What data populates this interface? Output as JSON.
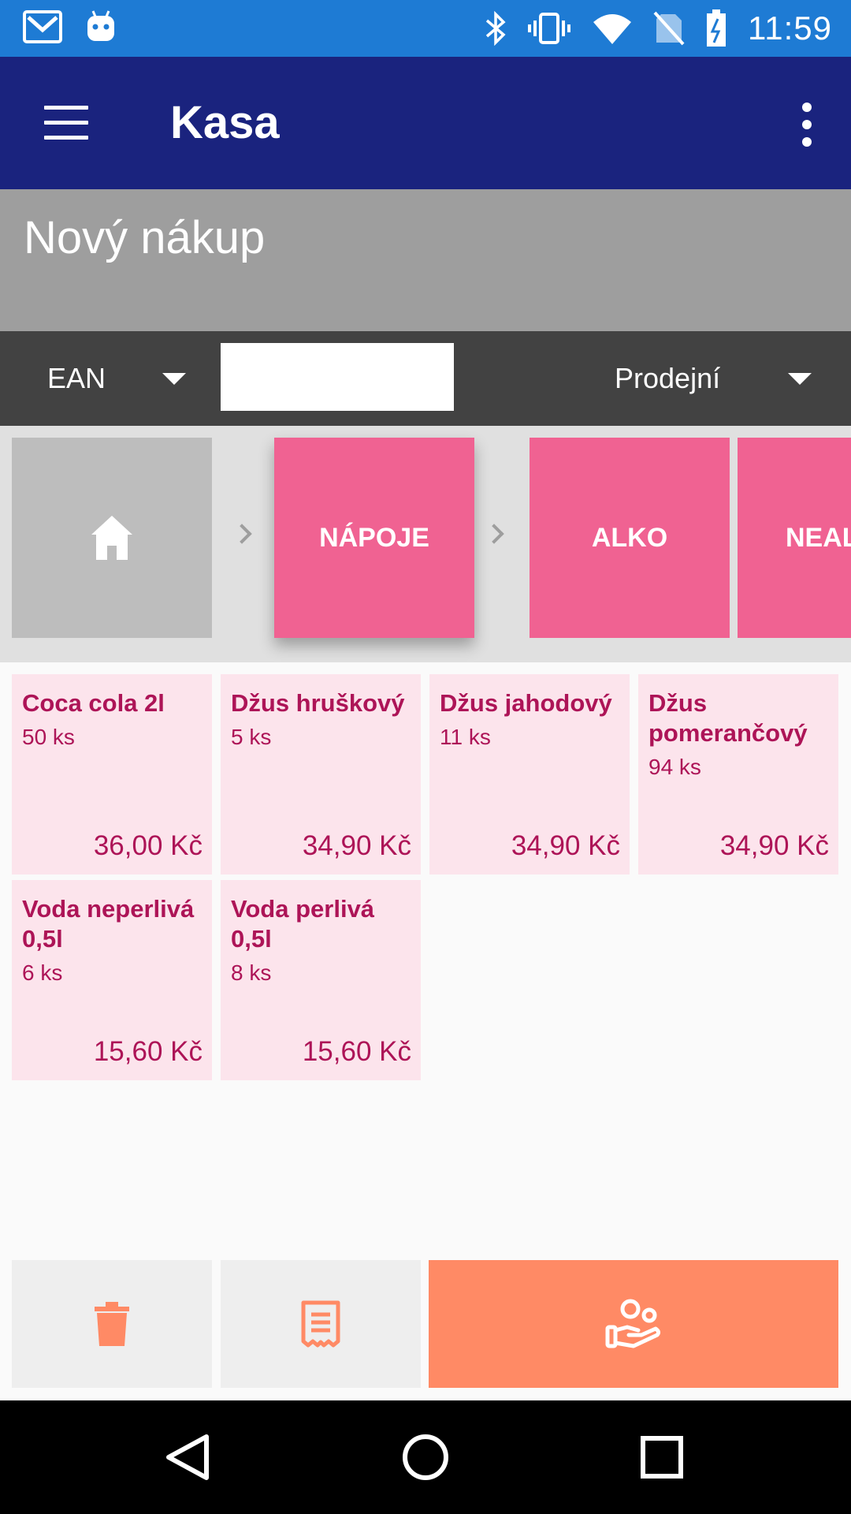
{
  "status_bar": {
    "time": "11:59",
    "icons": [
      "gmail-icon",
      "android-icon",
      "bluetooth-icon",
      "vibrate-icon",
      "wifi-icon",
      "no-sim-icon",
      "battery-charging-icon"
    ]
  },
  "app_bar": {
    "title": "Kasa",
    "menu_icon": "hamburger-menu-icon",
    "overflow_icon": "more-vert-icon"
  },
  "purchase": {
    "title": "Nový nákup"
  },
  "search_bar": {
    "code_type": "EAN",
    "search_value": "",
    "price_type": "Prodejní"
  },
  "categories": [
    {
      "label": "NÁPOJE",
      "active": true
    },
    {
      "label": "ALKO",
      "active": false
    },
    {
      "label": "NEALKO",
      "active": false
    }
  ],
  "products": [
    {
      "name": "Coca cola 2l",
      "qty": "50 ks",
      "price": "36,00 Kč"
    },
    {
      "name": "Džus hruškový",
      "qty": "5 ks",
      "price": "34,90 Kč"
    },
    {
      "name": "Džus jahodový",
      "qty": "11 ks",
      "price": "34,90 Kč"
    },
    {
      "name": "Džus pomerančový",
      "qty": "94 ks",
      "price": "34,90 Kč"
    },
    {
      "name": "Voda neperlivá 0,5l",
      "qty": "6 ks",
      "price": "15,60 Kč"
    },
    {
      "name": "Voda perlivá 0,5l",
      "qty": "8 ks",
      "price": "15,60 Kč"
    }
  ],
  "actions": [
    "delete-icon",
    "receipt-icon",
    "pay-customer-icon"
  ],
  "colors": {
    "status_bar": "#1e7bd4",
    "app_bar": "#1a237e",
    "category": "#f06292",
    "product_bg": "#fce4ec",
    "product_text": "#ad1457",
    "accent": "#ff8a65"
  }
}
